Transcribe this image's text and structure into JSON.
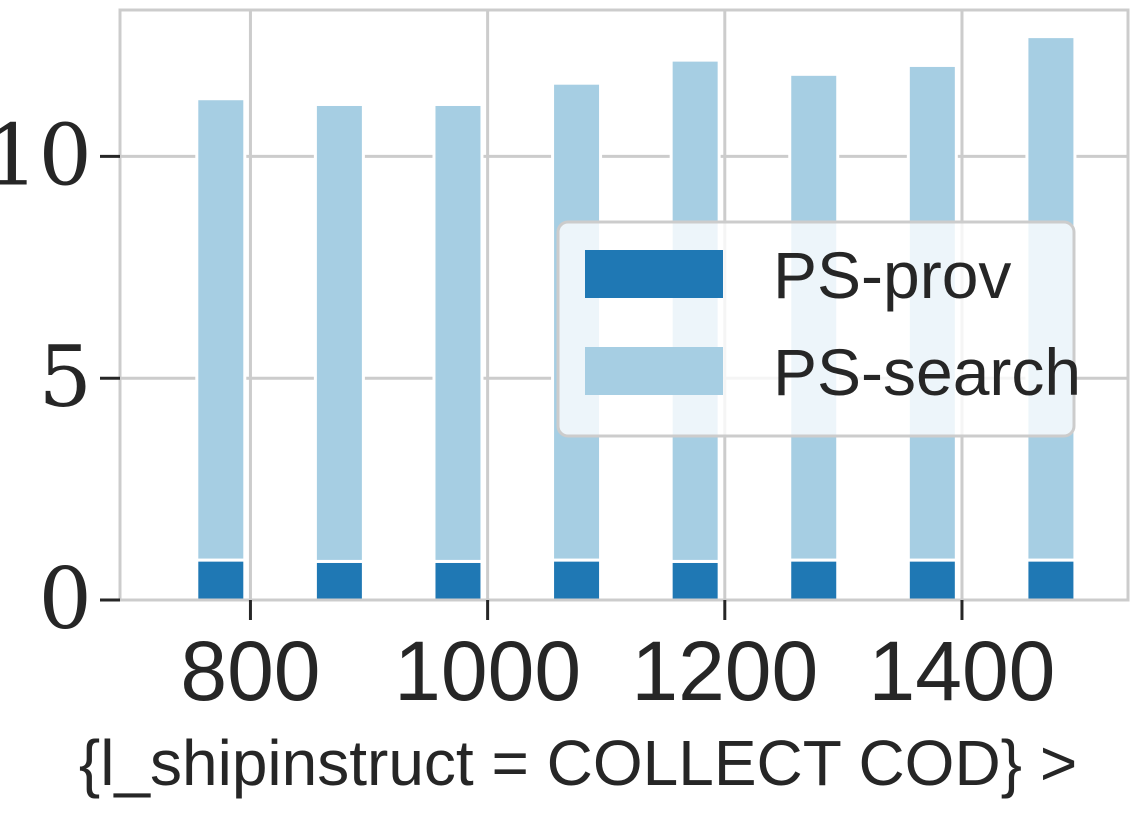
{
  "chart_data": {
    "type": "bar",
    "stacked": true,
    "x": [
      775,
      875,
      975,
      1075,
      1175,
      1275,
      1375,
      1475
    ],
    "series": [
      {
        "name": "PS-prov",
        "values": [
          0.9,
          0.87,
          0.87,
          0.9,
          0.87,
          0.9,
          0.9,
          0.9
        ],
        "color": "#1f78b4"
      },
      {
        "name": "PS-search",
        "values": [
          10.4,
          10.3,
          10.3,
          10.75,
          11.3,
          10.95,
          11.15,
          11.8
        ],
        "color": "#a6cee3"
      }
    ],
    "xticks": [
      800,
      1000,
      1200,
      1400
    ],
    "yticks": [
      0,
      5,
      10
    ],
    "xlabel": "{l_shipinstruct = COLLECT COD} >",
    "ylabel": "",
    "xlim": [
      690,
      1540
    ],
    "ylim": [
      0,
      13.3
    ],
    "grid": true,
    "legend_position": "center-right"
  }
}
